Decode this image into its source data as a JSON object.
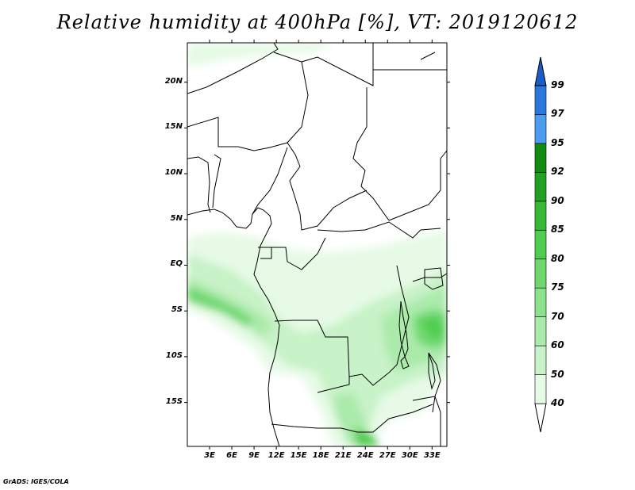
{
  "title": "Relative humidity at 400hPa [%], VT: 2019120612",
  "credit": "GrADS: IGES/COLA",
  "map": {
    "lat_range": [
      -19.8,
      24.3
    ],
    "lon_range": [
      0,
      35
    ]
  },
  "y_axis_labels": [
    "20N",
    "15N",
    "10N",
    "5N",
    "EQ",
    "5S",
    "10S",
    "15S"
  ],
  "y_axis_values": [
    20,
    15,
    10,
    5,
    0,
    -5,
    -10,
    -15
  ],
  "x_axis_labels": [
    "3E",
    "6E",
    "9E",
    "12E",
    "15E",
    "18E",
    "21E",
    "24E",
    "27E",
    "30E",
    "33E"
  ],
  "x_axis_values": [
    3,
    6,
    9,
    12,
    15,
    18,
    21,
    24,
    27,
    30,
    33
  ],
  "colorbar": {
    "labels": [
      "40",
      "50",
      "60",
      "70",
      "75",
      "80",
      "85",
      "90",
      "92",
      "95",
      "97",
      "99"
    ],
    "levels": [
      40,
      50,
      60,
      70,
      75,
      80,
      85,
      90,
      92,
      95,
      97,
      99
    ],
    "colors": [
      "#ffffff",
      "#e6fae6",
      "#c8f2c8",
      "#aaeaaa",
      "#8ce28c",
      "#6ed86e",
      "#50cc50",
      "#37b837",
      "#22a022",
      "#118b11",
      "#4c9cf0",
      "#2b78dc",
      "#1a5cc8"
    ]
  }
}
